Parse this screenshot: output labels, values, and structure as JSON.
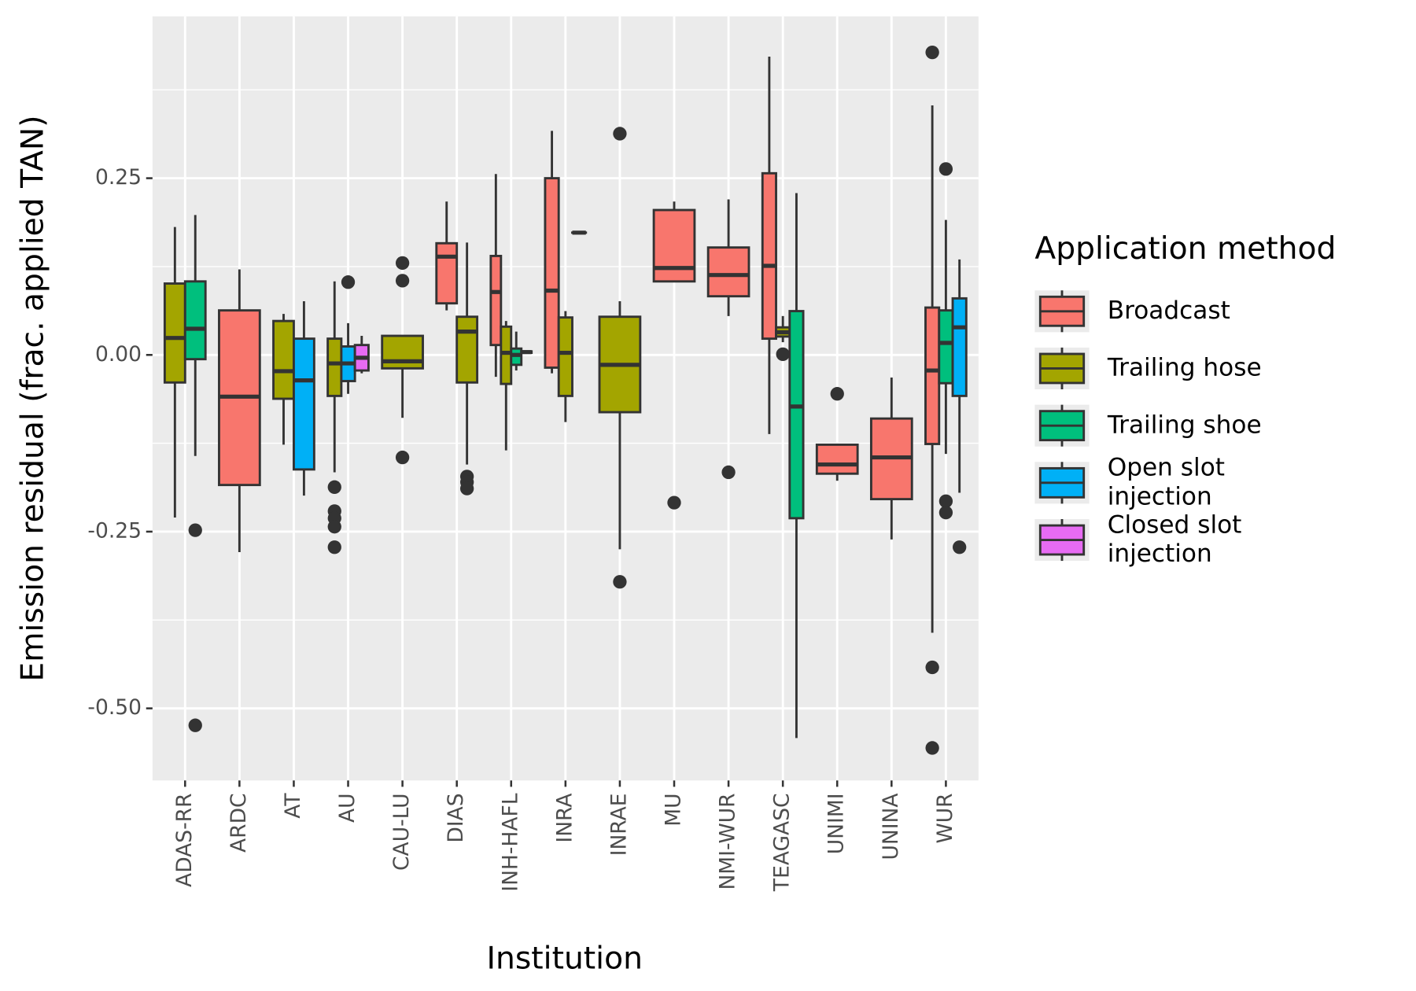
{
  "chart_data": {
    "type": "boxplot",
    "x_label": "Institution",
    "y_label": "Emission residual (frac. applied TAN)",
    "legend_title": "Application method",
    "legend_position": "right",
    "grid": true,
    "categories": [
      "ADAS-RR",
      "ARDC",
      "AT",
      "AU",
      "CAU-LU",
      "DIAS",
      "INH-HAFL",
      "INRA",
      "INRAE",
      "MU",
      "NMI-WUR",
      "TEAGASC",
      "UNIMI",
      "UNINA",
      "WUR"
    ],
    "ylim": [
      -0.602,
      0.479
    ],
    "yticks": [
      0.25,
      {
        "value": 0,
        "label": "0.00"
      },
      -0.25,
      {
        "value": -0.5,
        "label": "-0.50"
      }
    ],
    "series": [
      {
        "name": "Broadcast",
        "color": "#F8766D",
        "values": [
          null,
          [
            -0.279,
            -0.184,
            -0.059,
            0.063,
            0.121
          ],
          null,
          null,
          null,
          [
            0.063,
            0.073,
            0.139,
            0.158,
            0.217
          ],
          [
            -0.031,
            0.014,
            0.089,
            0.14,
            0.256
          ],
          [
            -0.026,
            -0.018,
            0.091,
            0.25,
            0.317
          ],
          null,
          [
            0.104,
            0.104,
            0.123,
            0.205,
            0.217
          ],
          [
            0.055,
            0.083,
            0.113,
            0.152,
            0.22
          ],
          [
            -0.112,
            0.023,
            0.126,
            0.257,
            0.422
          ],
          [
            -0.178,
            -0.168,
            -0.155,
            -0.127,
            -0.127
          ],
          [
            -0.261,
            -0.204,
            -0.145,
            -0.09,
            -0.032
          ],
          [
            -0.393,
            -0.126,
            -0.022,
            0.067,
            0.353
          ]
        ],
        "outliers": [
          [],
          [],
          [],
          [],
          [],
          [],
          [],
          [],
          [],
          [
            -0.209
          ],
          [
            -0.166
          ],
          [],
          [
            -0.055
          ],
          [],
          [
            0.428,
            -0.442,
            -0.556
          ]
        ]
      },
      {
        "name": "Trailing hose",
        "color": "#A3A500",
        "values": [
          [
            -0.23,
            -0.039,
            0.024,
            0.101,
            0.181
          ],
          null,
          [
            -0.127,
            -0.062,
            -0.023,
            0.048,
            0.058
          ],
          [
            -0.166,
            -0.058,
            -0.012,
            0.023,
            0.104
          ],
          [
            -0.089,
            -0.019,
            -0.009,
            0.027,
            0.027
          ],
          [
            -0.155,
            -0.039,
            0.033,
            0.054,
            0.159
          ],
          [
            -0.135,
            -0.041,
            0.003,
            0.04,
            0.048
          ],
          [
            -0.095,
            -0.058,
            0.003,
            0.053,
            0.062
          ],
          [
            -0.275,
            -0.081,
            -0.014,
            0.054,
            0.076
          ],
          null,
          null,
          [
            0.018,
            0.026,
            0.032,
            0.039,
            0.055
          ],
          null,
          null,
          null
        ],
        "outliers": [
          [],
          [],
          [],
          [
            -0.187,
            -0.221,
            -0.231,
            -0.243,
            -0.272
          ],
          [
            0.13,
            0.105,
            -0.145
          ],
          [
            -0.172,
            -0.18,
            -0.189
          ],
          [],
          [],
          [
            0.313,
            -0.321
          ],
          [],
          [],
          [
            0.001
          ],
          [],
          [],
          []
        ]
      },
      {
        "name": "Trailing shoe",
        "color": "#00BF7D",
        "values": [
          [
            -0.143,
            -0.006,
            0.037,
            0.104,
            0.198
          ],
          null,
          null,
          null,
          null,
          null,
          [
            -0.022,
            -0.014,
            0,
            0.009,
            0.033
          ],
          null,
          null,
          null,
          null,
          [
            -0.542,
            -0.231,
            -0.073,
            0.062,
            0.229
          ],
          null,
          null,
          [
            -0.14,
            -0.04,
            0.017,
            0.063,
            0.191
          ]
        ],
        "outliers": [
          [
            -0.248,
            -0.524
          ],
          [],
          [],
          [],
          [],
          [],
          [],
          [],
          [],
          [],
          [],
          [],
          [],
          [],
          [
            0.263,
            -0.207,
            -0.223
          ]
        ]
      },
      {
        "name": "Open slot\ninjection",
        "color": "#00B0F6",
        "values": [
          null,
          null,
          [
            -0.199,
            -0.162,
            -0.036,
            0.023,
            0.076
          ],
          [
            -0.055,
            -0.037,
            -0.012,
            0.012,
            0.045
          ],
          null,
          null,
          [
            0.002,
            0.003,
            0.004,
            0.005,
            0.006
          ],
          null,
          null,
          null,
          null,
          null,
          null,
          null,
          [
            -0.195,
            -0.058,
            0.039,
            0.08,
            0.135
          ]
        ],
        "outliers": [
          [],
          [],
          [],
          [
            0.103
          ],
          [],
          [],
          [],
          [],
          [],
          [],
          [],
          [],
          [],
          [],
          [
            -0.272
          ]
        ]
      },
      {
        "name": "Closed slot\ninjection",
        "color": "#E76BF3",
        "values": [
          null,
          null,
          null,
          [
            -0.026,
            -0.022,
            -0.004,
            0.014,
            0.027
          ],
          null,
          null,
          null,
          [
            0.173,
            0.173,
            0.173,
            0.173,
            0.173
          ],
          null,
          null,
          null,
          null,
          null,
          null,
          null
        ],
        "outliers": [
          [],
          [],
          [],
          [],
          [],
          [],
          [],
          [],
          [],
          [],
          [],
          [],
          [],
          [],
          []
        ]
      }
    ]
  }
}
